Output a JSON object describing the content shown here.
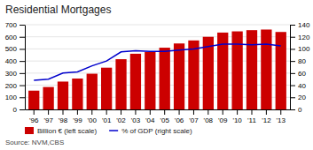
{
  "chart_data": {
    "type": "bar",
    "title": "Residential Mortgages",
    "categories": [
      "'96",
      "'97",
      "'98",
      "'99",
      "'00",
      "'01",
      "'02",
      "'03",
      "'04",
      "'05",
      "'06",
      "'07",
      "'08",
      "'09",
      "'10",
      "'11",
      "'12",
      "'13"
    ],
    "series": [
      {
        "name": "Billion € (left scale)",
        "type": "bar",
        "color": "#cc0000",
        "values": [
          155,
          185,
          230,
          255,
          295,
          345,
          415,
          460,
          475,
          510,
          545,
          570,
          600,
          635,
          645,
          655,
          660,
          640
        ]
      },
      {
        "name": "% of GDP (right scale)",
        "type": "line",
        "axis": "y2",
        "color": "#0000cc",
        "values": [
          48,
          50,
          60,
          62,
          72,
          80,
          95,
          97,
          96,
          96,
          98,
          100,
          104,
          108,
          108,
          107,
          108,
          105
        ]
      }
    ],
    "ylim": [
      0,
      700
    ],
    "yticks": [
      0,
      100,
      200,
      300,
      400,
      500,
      600,
      700
    ],
    "y2lim": [
      0,
      140
    ],
    "y2ticks": [
      0,
      20,
      40,
      60,
      80,
      100,
      120,
      140
    ],
    "grid": true,
    "legend": "bottom",
    "annotations": [
      "Source: NVM,CBS"
    ]
  }
}
